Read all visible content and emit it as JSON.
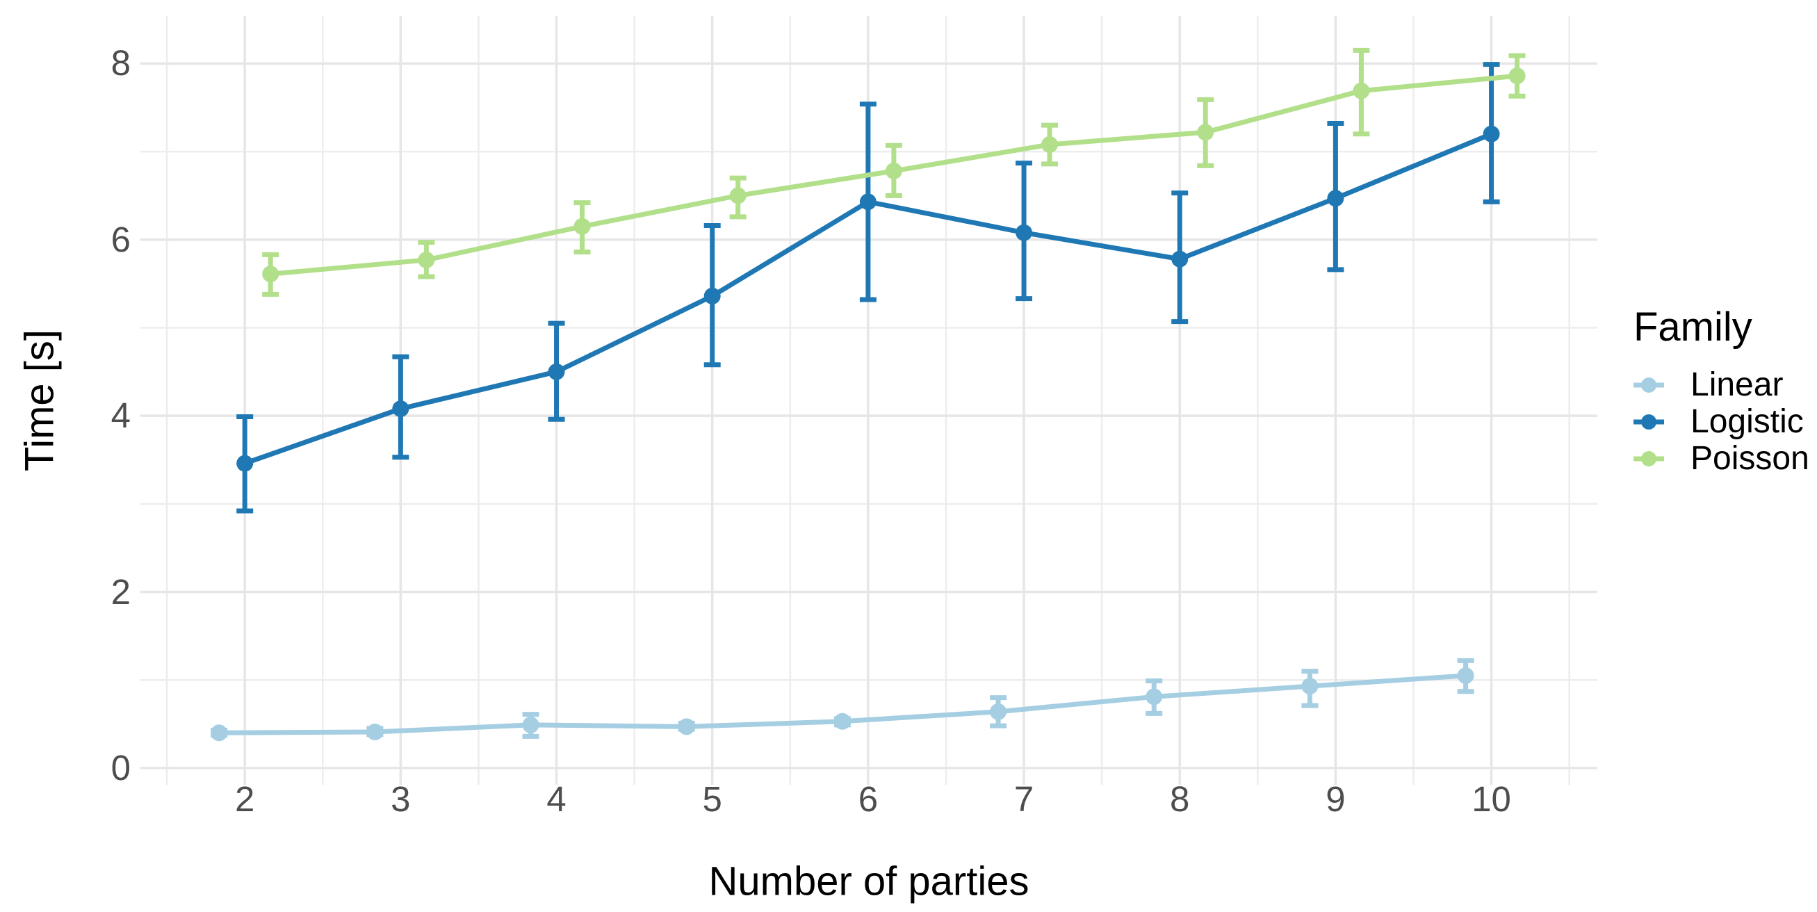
{
  "chart_data": {
    "type": "line",
    "title": "",
    "xlabel": "Number of parties",
    "ylabel": "Time [s]",
    "legend_title": "Family",
    "legend_position": "right",
    "grid": true,
    "x": [
      2,
      3,
      4,
      5,
      6,
      7,
      8,
      9,
      10
    ],
    "x_ticks": [
      "2",
      "3",
      "4",
      "5",
      "6",
      "7",
      "8",
      "9",
      "10"
    ],
    "x_tick_values": [
      2,
      3,
      4,
      5,
      6,
      7,
      8,
      9,
      10
    ],
    "y_ticks": [
      "0",
      "2",
      "4",
      "6",
      "8"
    ],
    "y_tick_values": [
      0,
      2,
      4,
      6,
      8
    ],
    "x_minor": [
      1.5,
      2.5,
      3.5,
      4.5,
      5.5,
      6.5,
      7.5,
      8.5,
      9.5,
      10.5
    ],
    "y_minor": [
      1,
      3,
      5,
      7
    ],
    "xlim": [
      1.33,
      10.68
    ],
    "ylim": [
      -0.19,
      8.54
    ],
    "dodge_width": 0.33,
    "series": [
      {
        "name": "Linear",
        "color": "#A6CEE3",
        "dodge": -0.165,
        "values": [
          0.4,
          0.41,
          0.49,
          0.47,
          0.53,
          0.64,
          0.81,
          0.93,
          1.05
        ],
        "err_low": [
          0.37,
          0.38,
          0.36,
          0.44,
          0.49,
          0.48,
          0.62,
          0.71,
          0.87
        ],
        "err_high": [
          0.43,
          0.45,
          0.61,
          0.51,
          0.56,
          0.8,
          0.99,
          1.1,
          1.22
        ]
      },
      {
        "name": "Logistic",
        "color": "#1F78B4",
        "dodge": 0,
        "values": [
          3.46,
          4.08,
          4.5,
          5.36,
          6.43,
          6.08,
          5.78,
          6.47,
          7.2
        ],
        "err_low": [
          2.92,
          3.53,
          3.96,
          4.58,
          5.32,
          5.33,
          5.07,
          5.66,
          6.43
        ],
        "err_high": [
          3.99,
          4.67,
          5.05,
          6.16,
          7.54,
          6.87,
          6.53,
          7.32,
          7.99
        ]
      },
      {
        "name": "Poisson",
        "color": "#B2DF8A",
        "dodge": 0.165,
        "values": [
          5.61,
          5.77,
          6.15,
          6.5,
          6.78,
          7.08,
          7.22,
          7.69,
          7.86
        ],
        "err_low": [
          5.38,
          5.58,
          5.86,
          6.26,
          6.5,
          6.86,
          6.84,
          7.2,
          7.63
        ],
        "err_high": [
          5.83,
          5.97,
          6.42,
          6.7,
          7.07,
          7.3,
          7.59,
          8.15,
          8.09
        ]
      }
    ],
    "colors": {
      "axis_text": "#4D4D4D",
      "title_text": "#000000",
      "grid_major": "#E6E6E6",
      "grid_minor": "#EDEDED",
      "background": "#FFFFFF"
    }
  }
}
